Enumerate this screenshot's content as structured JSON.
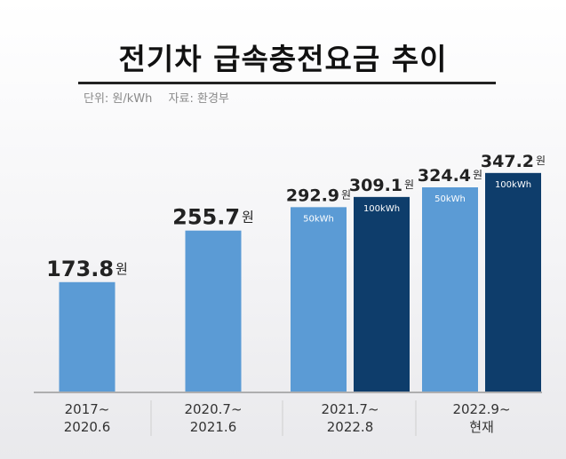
{
  "title": "전기차 급속충전요금 추이",
  "unit_note": "단위: 원/kWh",
  "source_note": "자료: 환경부",
  "colors": {
    "light": "#5b9bd5",
    "dark": "#0e3d6b",
    "axis": "#9a9a9a",
    "divider": "#cfcfcf"
  },
  "chart_data": {
    "type": "bar",
    "categories": [
      {
        "line1": "2017~",
        "line2": "2020.6"
      },
      {
        "line1": "2020.7~",
        "line2": "2021.6"
      },
      {
        "line1": "2021.7~",
        "line2": "2022.8"
      },
      {
        "line1": "2022.9~",
        "line2": "현재"
      }
    ],
    "bars": [
      {
        "category": 0,
        "value": 173.8,
        "label": "173.8",
        "unit": "원",
        "inner": "",
        "color": "light"
      },
      {
        "category": 1,
        "value": 255.7,
        "label": "255.7",
        "unit": "원",
        "inner": "",
        "color": "light"
      },
      {
        "category": 2,
        "value": 292.9,
        "label": "292.9",
        "unit": "원",
        "inner": "50kWh",
        "color": "light"
      },
      {
        "category": 2,
        "value": 309.1,
        "label": "309.1",
        "unit": "원",
        "inner": "100kWh",
        "color": "dark"
      },
      {
        "category": 3,
        "value": 324.4,
        "label": "324.4",
        "unit": "원",
        "inner": "50kWh",
        "color": "light"
      },
      {
        "category": 3,
        "value": 347.2,
        "label": "347.2",
        "unit": "원",
        "inner": "100kWh",
        "color": "dark"
      }
    ],
    "ylim": [
      0,
      350
    ]
  }
}
